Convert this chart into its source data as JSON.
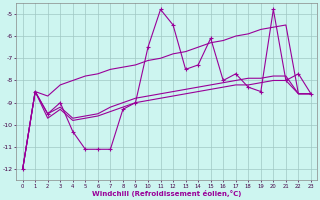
{
  "x": [
    0,
    1,
    2,
    3,
    4,
    5,
    6,
    7,
    8,
    9,
    10,
    11,
    12,
    13,
    14,
    15,
    16,
    17,
    18,
    19,
    20,
    21,
    22,
    23
  ],
  "line_jagged": [
    -12.0,
    -8.5,
    -9.5,
    -9.0,
    -10.3,
    -11.1,
    -11.1,
    -11.1,
    -9.3,
    -9.0,
    -6.5,
    -4.8,
    -5.5,
    -7.5,
    -7.3,
    -6.1,
    -8.0,
    -7.7,
    -8.3,
    -8.5,
    -4.8,
    -8.0,
    -7.7,
    -8.6
  ],
  "line_upper": [
    -12.0,
    -8.5,
    -8.7,
    -8.2,
    -8.0,
    -7.8,
    -7.7,
    -7.5,
    -7.4,
    -7.3,
    -7.1,
    -7.0,
    -6.8,
    -6.7,
    -6.5,
    -6.3,
    -6.2,
    -6.0,
    -5.9,
    -5.7,
    -5.6,
    -5.5,
    -8.6,
    -8.6
  ],
  "line_lower1": [
    -12.0,
    -8.5,
    -9.5,
    -9.2,
    -9.7,
    -9.6,
    -9.5,
    -9.2,
    -9.0,
    -8.8,
    -8.7,
    -8.6,
    -8.5,
    -8.4,
    -8.3,
    -8.2,
    -8.1,
    -8.0,
    -7.9,
    -7.9,
    -7.8,
    -7.8,
    -8.6,
    -8.6
  ],
  "line_lower2": [
    -12.0,
    -8.5,
    -9.7,
    -9.3,
    -9.8,
    -9.7,
    -9.6,
    -9.4,
    -9.2,
    -9.0,
    -8.9,
    -8.8,
    -8.7,
    -8.6,
    -8.5,
    -8.4,
    -8.3,
    -8.2,
    -8.2,
    -8.1,
    -8.0,
    -8.0,
    -8.6,
    -8.6
  ],
  "bg_color": "#cdf5f0",
  "grid_color": "#a0c8c4",
  "line_color": "#990099",
  "xlabel": "Windchill (Refroidissement éolien,°C)",
  "yticks": [
    -12,
    -11,
    -10,
    -9,
    -8,
    -7,
    -6,
    -5
  ],
  "xticks": [
    0,
    1,
    2,
    3,
    4,
    5,
    6,
    7,
    8,
    9,
    10,
    11,
    12,
    13,
    14,
    15,
    16,
    17,
    18,
    19,
    20,
    21,
    22,
    23
  ],
  "ylim": [
    -12.5,
    -4.5
  ],
  "xlim": [
    -0.5,
    23.5
  ]
}
